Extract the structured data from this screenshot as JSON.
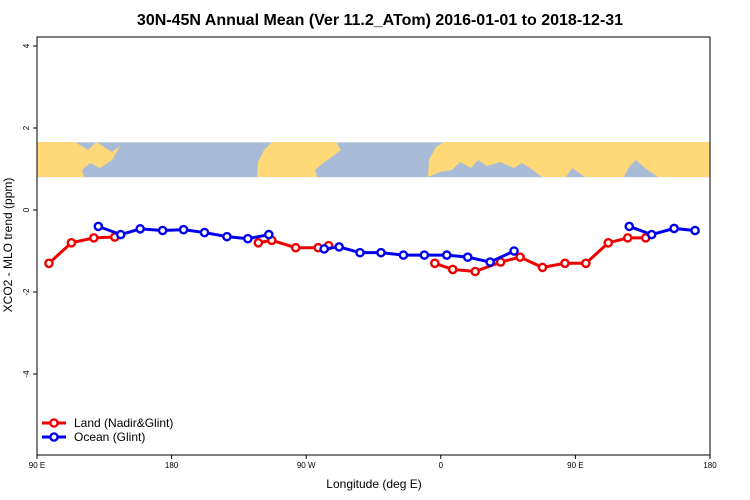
{
  "chart_data": {
    "type": "line",
    "title": "30N-45N Annual Mean (Ver 11.2_ATom)   2016-01-01 to 2018-12-31",
    "xlabel": "Longitude (deg E)",
    "ylabel": "XCO2 - MLO trend (ppm)",
    "xlim": [
      90,
      540
    ],
    "ylim": [
      -6,
      4
    ],
    "x_ticks": [
      {
        "value": 90,
        "label": "90 E"
      },
      {
        "value": 180,
        "label": "180"
      },
      {
        "value": 270,
        "label": "90 W"
      },
      {
        "value": 360,
        "label": "0"
      },
      {
        "value": 450,
        "label": "90 E"
      },
      {
        "value": 540,
        "label": "180"
      }
    ],
    "y_ticks": [
      {
        "value": 4,
        "label": "4"
      },
      {
        "value": 2,
        "label": "2"
      },
      {
        "value": 0,
        "label": "0"
      },
      {
        "value": -2,
        "label": "-2"
      },
      {
        "value": -4,
        "label": "-4"
      }
    ],
    "map_band": {
      "y_top": 1.65,
      "y_bottom": 0.8,
      "land_color": "#FFD878",
      "ocean_color": "#A8BCD8"
    },
    "series": [
      {
        "name": "Land (Nadir&Glint)",
        "color": "#EE0000",
        "segments": [
          [
            [
              98,
              -1.3
            ],
            [
              113,
              -0.8
            ],
            [
              128,
              -0.68
            ],
            [
              142,
              -0.66
            ]
          ],
          [
            [
              238,
              -0.8
            ],
            [
              247,
              -0.74
            ],
            [
              263,
              -0.92
            ],
            [
              278,
              -0.92
            ],
            [
              285,
              -0.87
            ]
          ],
          [
            [
              356,
              -1.3
            ],
            [
              368,
              -1.45
            ],
            [
              383,
              -1.5
            ],
            [
              400,
              -1.27
            ],
            [
              413,
              -1.15
            ],
            [
              428,
              -1.4
            ],
            [
              443,
              -1.3
            ],
            [
              457,
              -1.3
            ],
            [
              472,
              -0.8
            ],
            [
              485,
              -0.68
            ],
            [
              497,
              -0.68
            ]
          ]
        ]
      },
      {
        "name": "Ocean (Glint)",
        "color": "#0000EE",
        "segments": [
          [
            [
              131,
              -0.4
            ],
            [
              146,
              -0.6
            ],
            [
              159,
              -0.46
            ],
            [
              174,
              -0.5
            ],
            [
              188,
              -0.48
            ],
            [
              202,
              -0.55
            ],
            [
              217,
              -0.65
            ],
            [
              231,
              -0.7
            ],
            [
              245,
              -0.6
            ]
          ],
          [
            [
              282,
              -0.95
            ],
            [
              292,
              -0.9
            ],
            [
              306,
              -1.04
            ],
            [
              320,
              -1.04
            ],
            [
              335,
              -1.1
            ],
            [
              349,
              -1.1
            ],
            [
              364,
              -1.1
            ],
            [
              378,
              -1.15
            ],
            [
              393,
              -1.27
            ],
            [
              409,
              -1.0
            ]
          ],
          [
            [
              486,
              -0.4
            ],
            [
              501,
              -0.6
            ],
            [
              516,
              -0.45
            ],
            [
              530,
              -0.5
            ]
          ]
        ]
      }
    ],
    "legend": {
      "position": "bottom-left"
    }
  }
}
